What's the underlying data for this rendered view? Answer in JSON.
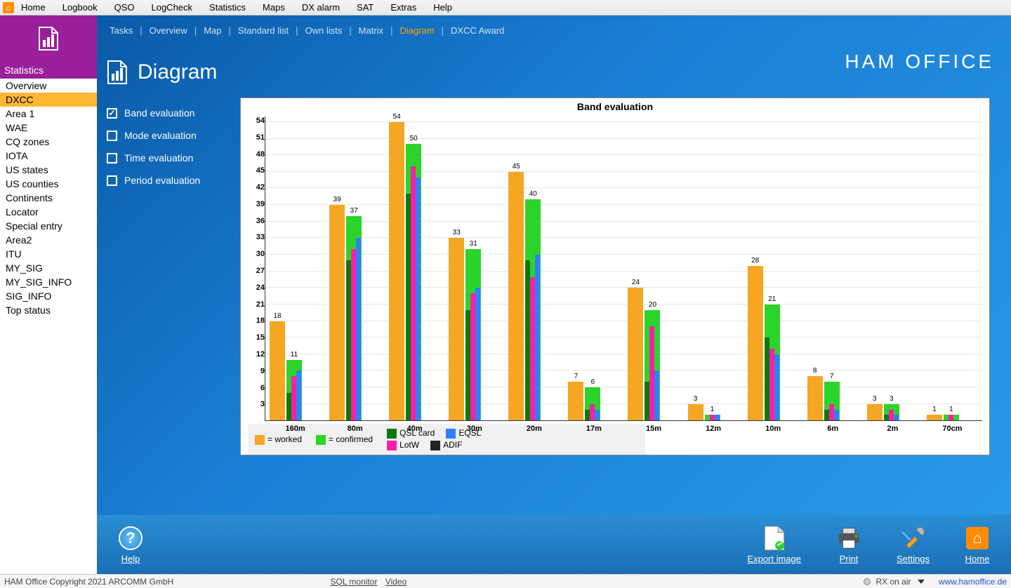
{
  "menubar": {
    "items": [
      "Home",
      "Logbook",
      "QSO",
      "LogCheck",
      "Statistics",
      "Maps",
      "DX alarm",
      "SAT",
      "Extras",
      "Help"
    ]
  },
  "sidebar": {
    "header_label": "Statistics",
    "header_color": "#9a1f9a",
    "items": [
      "Overview",
      "DXCC",
      "Area 1",
      "WAE",
      "CQ zones",
      "IOTA",
      "US states",
      "US counties",
      "Continents",
      "Locator",
      "Special entry",
      "Area2",
      "ITU",
      "MY_SIG",
      "MY_SIG_INFO",
      "SIG_INFO",
      "Top status"
    ],
    "active_index": 1,
    "active_bg": "#ffb733"
  },
  "tabs": {
    "items": [
      "Tasks",
      "Overview",
      "Map",
      "Standard list",
      "Own lists",
      "Matrix",
      "Diagram",
      "DXCC Award"
    ],
    "active_index": 6,
    "active_color": "#ffa500"
  },
  "brand": "HAM OFFICE",
  "page_title": "Diagram",
  "options": [
    {
      "label": "Band evaluation",
      "checked": true
    },
    {
      "label": "Mode evaluation",
      "checked": false
    },
    {
      "label": "Time evaluation",
      "checked": false
    },
    {
      "label": "Period evaluation",
      "checked": false
    }
  ],
  "chart": {
    "title": "Band evaluation",
    "type": "bar",
    "ymax": 55,
    "ytick_step": 3,
    "yticks": [
      54,
      51,
      48,
      45,
      42,
      39,
      36,
      33,
      30,
      27,
      24,
      21,
      18,
      15,
      12,
      9,
      6,
      3
    ],
    "grid_color": "#e5e5e5",
    "categories": [
      "160m",
      "80m",
      "40m",
      "30m",
      "20m",
      "17m",
      "15m",
      "12m",
      "10m",
      "6m",
      "2m",
      "70cm"
    ],
    "series": [
      {
        "name": "worked",
        "label": "= worked",
        "color": "#f5a623",
        "width": 22,
        "offset": 6,
        "labeled": true,
        "values": [
          18,
          39,
          54,
          33,
          45,
          7,
          24,
          3,
          28,
          8,
          3,
          1
        ]
      },
      {
        "name": "confirmed",
        "label": "= confirmed",
        "color": "#2bd42b",
        "width": 22,
        "offset": 30,
        "labeled": true,
        "values": [
          11,
          37,
          50,
          31,
          40,
          6,
          20,
          1,
          21,
          7,
          3,
          1
        ]
      },
      {
        "name": "qsl_card",
        "label": "QSL card",
        "color": "#0b7a0b",
        "width": 7,
        "offset": 30,
        "labeled": false,
        "values": [
          5,
          29,
          41,
          20,
          29,
          2,
          7,
          0,
          15,
          2,
          1,
          0
        ]
      },
      {
        "name": "lotw",
        "label": "LotW",
        "color": "#ff1fa6",
        "width": 7,
        "offset": 37,
        "labeled": false,
        "values": [
          8,
          31,
          46,
          23,
          26,
          3,
          17,
          1,
          13,
          3,
          2,
          1
        ]
      },
      {
        "name": "eqsl",
        "label": "EQSL",
        "color": "#2f7fff",
        "width": 7,
        "offset": 44,
        "labeled": false,
        "values": [
          9,
          33,
          44,
          24,
          30,
          2,
          9,
          1,
          12,
          2,
          1,
          0
        ]
      },
      {
        "name": "adif",
        "label": "ADIF",
        "color": "#222222",
        "width": 7,
        "offset": 51,
        "labeled": false,
        "values": [
          0,
          0,
          0,
          0,
          0,
          0,
          0,
          0,
          0,
          0,
          0,
          0
        ]
      }
    ],
    "label_fontsize": 10,
    "axis_fontsize": 11
  },
  "bottom_bar": {
    "left": [
      {
        "name": "help",
        "label": "Help",
        "icon": "?"
      }
    ],
    "right": [
      {
        "name": "export-image",
        "label": "Export image",
        "icon": "doc"
      },
      {
        "name": "print",
        "label": "Print",
        "icon": "printer"
      },
      {
        "name": "settings",
        "label": "Settings",
        "icon": "tools"
      },
      {
        "name": "home",
        "label": "Home",
        "icon": "home"
      }
    ]
  },
  "status_bar": {
    "copyright": "HAM Office Copyright 2021 ARCOMM GmbH",
    "sql_monitor": "SQL monitor",
    "video": "Video",
    "rx": "RX on air",
    "url": "www.hamoffice.de"
  }
}
